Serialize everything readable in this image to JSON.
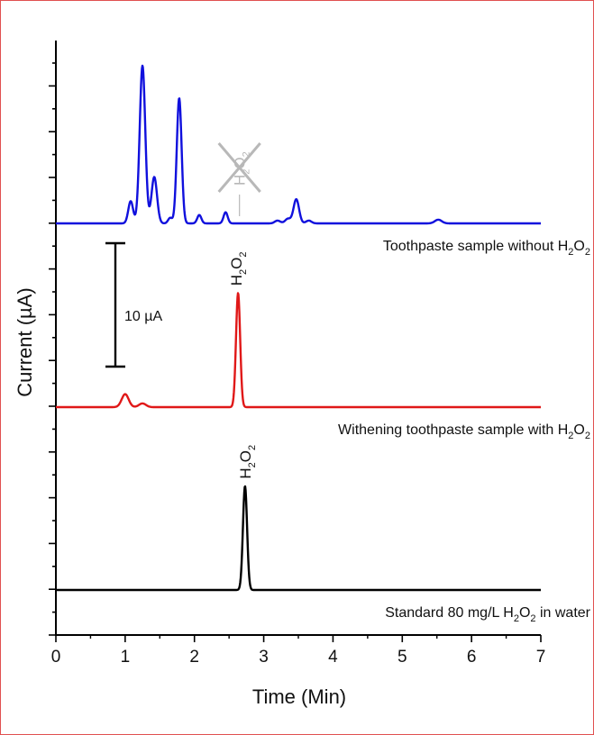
{
  "chart_data": {
    "type": "line",
    "xlabel": "Time (Min)",
    "ylabel": "Current (µA)",
    "xlim": [
      0,
      7
    ],
    "x_ticks": [
      0,
      1,
      2,
      3,
      4,
      5,
      6,
      7
    ],
    "y_tick_labels": "none",
    "grid": false,
    "legend": "none",
    "scale_bar": {
      "label": "10 µA",
      "value": 10,
      "unit": "µA"
    },
    "series": [
      {
        "label_text": "Toothpaste sample without H",
        "label_sub1": "2",
        "label_mid": "O",
        "label_sub2": "2",
        "color": "#1010dd",
        "peaks": [
          {
            "t": 1.08,
            "height": 2.4
          },
          {
            "t": 1.25,
            "height": 17.0
          },
          {
            "t": 1.42,
            "height": 5.0
          },
          {
            "t": 1.65,
            "height": 0.6
          },
          {
            "t": 1.78,
            "height": 13.5
          },
          {
            "t": 2.07,
            "height": 0.9
          },
          {
            "t": 2.45,
            "height": 1.2
          },
          {
            "t": 3.2,
            "height": 0.3
          },
          {
            "t": 3.35,
            "height": 0.5
          },
          {
            "t": 3.47,
            "height": 2.6
          },
          {
            "t": 3.65,
            "height": 0.3
          },
          {
            "t": 5.52,
            "height": 0.4
          }
        ],
        "absent_marker": {
          "t": 2.65,
          "text_main": "H",
          "text_sub": "2",
          "text_o": "O",
          "text_sub2": "2",
          "color": "#b8b8b8"
        }
      },
      {
        "label_text": "Withening toothpaste sample with H",
        "label_sub1": "2",
        "label_mid": "O",
        "label_sub2": "2",
        "color": "#e01818",
        "peaks": [
          {
            "t": 1.0,
            "height": 1.4
          },
          {
            "t": 1.25,
            "height": 0.4
          },
          {
            "t": 2.63,
            "height": 12.3
          }
        ],
        "peak_annotation": {
          "t": 2.6,
          "text_main": "H",
          "text_sub": "2",
          "text_o": "O",
          "text_sub2": "2"
        }
      },
      {
        "label_text": "Standard 80 mg/L H",
        "label_sub1": "2",
        "label_mid": "O",
        "label_sub2": "2",
        "label_tail": " in water",
        "color": "#000000",
        "peaks": [
          {
            "t": 2.73,
            "height": 11.2
          }
        ],
        "peak_annotation": {
          "t": 2.73,
          "text_main": "H",
          "text_sub": "2",
          "text_o": "O",
          "text_sub2": "2"
        }
      }
    ]
  }
}
